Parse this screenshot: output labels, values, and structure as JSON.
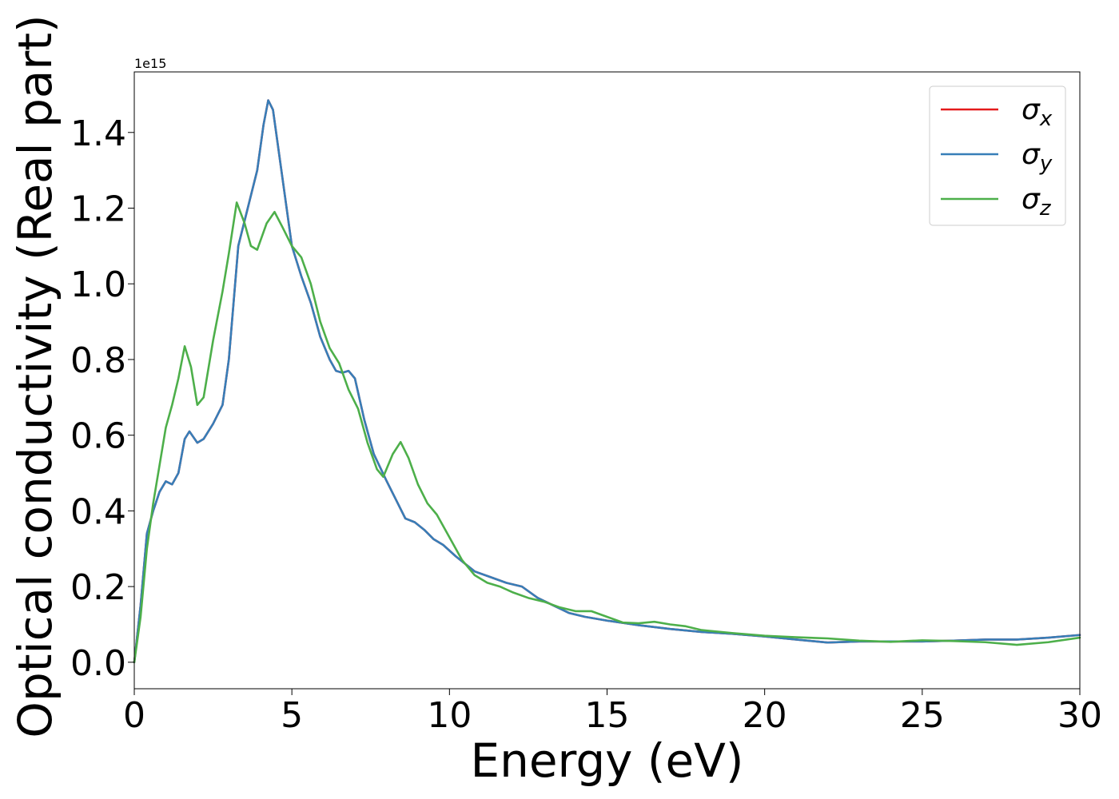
{
  "chart_data": {
    "type": "line",
    "xlabel": "Energy (eV)",
    "ylabel": "Optical conductivity (Real part)",
    "offset_text": "1e15",
    "xlim": [
      0,
      30
    ],
    "ylim": [
      -0.07,
      1.56
    ],
    "x_ticks": [
      0,
      5,
      10,
      15,
      20,
      25,
      30
    ],
    "x_tick_labels": [
      "0",
      "5",
      "10",
      "15",
      "20",
      "25",
      "30"
    ],
    "y_ticks": [
      0.0,
      0.2,
      0.4,
      0.6,
      0.8,
      1.0,
      1.2,
      1.4
    ],
    "y_tick_labels": [
      "0.0",
      "0.2",
      "0.4",
      "0.6",
      "0.8",
      "1.0",
      "1.2",
      "1.4"
    ],
    "grid": false,
    "legend_position": "top-right",
    "series": [
      {
        "name": "σx",
        "name_base": "σ",
        "name_sub": "x",
        "color": "#e41a1c",
        "points": [
          [
            0,
            0
          ],
          [
            0.2,
            0.15
          ],
          [
            0.4,
            0.34
          ],
          [
            0.6,
            0.4
          ],
          [
            0.8,
            0.45
          ],
          [
            1.0,
            0.478
          ],
          [
            1.2,
            0.47
          ],
          [
            1.4,
            0.5
          ],
          [
            1.6,
            0.59
          ],
          [
            1.75,
            0.61
          ],
          [
            2.0,
            0.58
          ],
          [
            2.2,
            0.59
          ],
          [
            2.5,
            0.63
          ],
          [
            2.8,
            0.68
          ],
          [
            3.0,
            0.8
          ],
          [
            3.3,
            1.1
          ],
          [
            3.6,
            1.2
          ],
          [
            3.9,
            1.3
          ],
          [
            4.1,
            1.42
          ],
          [
            4.25,
            1.485
          ],
          [
            4.4,
            1.46
          ],
          [
            4.7,
            1.28
          ],
          [
            5.0,
            1.1
          ],
          [
            5.3,
            1.02
          ],
          [
            5.6,
            0.95
          ],
          [
            5.9,
            0.86
          ],
          [
            6.2,
            0.8
          ],
          [
            6.4,
            0.77
          ],
          [
            6.6,
            0.765
          ],
          [
            6.8,
            0.77
          ],
          [
            7.0,
            0.75
          ],
          [
            7.3,
            0.64
          ],
          [
            7.6,
            0.55
          ],
          [
            8.0,
            0.48
          ],
          [
            8.3,
            0.43
          ],
          [
            8.6,
            0.38
          ],
          [
            8.9,
            0.37
          ],
          [
            9.2,
            0.35
          ],
          [
            9.5,
            0.325
          ],
          [
            9.8,
            0.31
          ],
          [
            10.2,
            0.28
          ],
          [
            10.8,
            0.24
          ],
          [
            11.3,
            0.225
          ],
          [
            11.8,
            0.21
          ],
          [
            12.3,
            0.2
          ],
          [
            12.8,
            0.17
          ],
          [
            13.3,
            0.15
          ],
          [
            13.8,
            0.13
          ],
          [
            14.3,
            0.12
          ],
          [
            15.0,
            0.11
          ],
          [
            16.0,
            0.098
          ],
          [
            17.0,
            0.088
          ],
          [
            18.0,
            0.08
          ],
          [
            19.0,
            0.075
          ],
          [
            20.0,
            0.068
          ],
          [
            21.0,
            0.06
          ],
          [
            22.0,
            0.052
          ],
          [
            23.0,
            0.055
          ],
          [
            24.0,
            0.055
          ],
          [
            25.0,
            0.055
          ],
          [
            26.0,
            0.057
          ],
          [
            27.0,
            0.06
          ],
          [
            28.0,
            0.06
          ],
          [
            29.0,
            0.065
          ],
          [
            30.0,
            0.072
          ]
        ]
      },
      {
        "name": "σy",
        "name_base": "σ",
        "name_sub": "y",
        "color": "#377eb8",
        "points": [
          [
            0,
            0
          ],
          [
            0.2,
            0.15
          ],
          [
            0.4,
            0.34
          ],
          [
            0.6,
            0.4
          ],
          [
            0.8,
            0.45
          ],
          [
            1.0,
            0.478
          ],
          [
            1.2,
            0.47
          ],
          [
            1.4,
            0.5
          ],
          [
            1.6,
            0.59
          ],
          [
            1.75,
            0.61
          ],
          [
            2.0,
            0.58
          ],
          [
            2.2,
            0.59
          ],
          [
            2.5,
            0.63
          ],
          [
            2.8,
            0.68
          ],
          [
            3.0,
            0.8
          ],
          [
            3.3,
            1.1
          ],
          [
            3.6,
            1.2
          ],
          [
            3.9,
            1.3
          ],
          [
            4.1,
            1.42
          ],
          [
            4.25,
            1.485
          ],
          [
            4.4,
            1.46
          ],
          [
            4.7,
            1.28
          ],
          [
            5.0,
            1.1
          ],
          [
            5.3,
            1.02
          ],
          [
            5.6,
            0.95
          ],
          [
            5.9,
            0.86
          ],
          [
            6.2,
            0.8
          ],
          [
            6.4,
            0.77
          ],
          [
            6.6,
            0.765
          ],
          [
            6.8,
            0.77
          ],
          [
            7.0,
            0.75
          ],
          [
            7.3,
            0.64
          ],
          [
            7.6,
            0.55
          ],
          [
            8.0,
            0.48
          ],
          [
            8.3,
            0.43
          ],
          [
            8.6,
            0.38
          ],
          [
            8.9,
            0.37
          ],
          [
            9.2,
            0.35
          ],
          [
            9.5,
            0.325
          ],
          [
            9.8,
            0.31
          ],
          [
            10.2,
            0.28
          ],
          [
            10.8,
            0.24
          ],
          [
            11.3,
            0.225
          ],
          [
            11.8,
            0.21
          ],
          [
            12.3,
            0.2
          ],
          [
            12.8,
            0.17
          ],
          [
            13.3,
            0.15
          ],
          [
            13.8,
            0.13
          ],
          [
            14.3,
            0.12
          ],
          [
            15.0,
            0.11
          ],
          [
            16.0,
            0.098
          ],
          [
            17.0,
            0.088
          ],
          [
            18.0,
            0.08
          ],
          [
            19.0,
            0.075
          ],
          [
            20.0,
            0.068
          ],
          [
            21.0,
            0.06
          ],
          [
            22.0,
            0.052
          ],
          [
            23.0,
            0.055
          ],
          [
            24.0,
            0.055
          ],
          [
            25.0,
            0.055
          ],
          [
            26.0,
            0.057
          ],
          [
            27.0,
            0.06
          ],
          [
            28.0,
            0.06
          ],
          [
            29.0,
            0.065
          ],
          [
            30.0,
            0.072
          ]
        ]
      },
      {
        "name": "σz",
        "name_base": "σ",
        "name_sub": "z",
        "color": "#4daf4a",
        "points": [
          [
            0,
            0
          ],
          [
            0.2,
            0.12
          ],
          [
            0.4,
            0.3
          ],
          [
            0.6,
            0.42
          ],
          [
            0.8,
            0.52
          ],
          [
            1.0,
            0.62
          ],
          [
            1.2,
            0.68
          ],
          [
            1.4,
            0.75
          ],
          [
            1.6,
            0.835
          ],
          [
            1.8,
            0.78
          ],
          [
            2.0,
            0.68
          ],
          [
            2.2,
            0.7
          ],
          [
            2.5,
            0.85
          ],
          [
            2.8,
            0.98
          ],
          [
            3.0,
            1.08
          ],
          [
            3.25,
            1.215
          ],
          [
            3.5,
            1.16
          ],
          [
            3.7,
            1.1
          ],
          [
            3.9,
            1.09
          ],
          [
            4.2,
            1.16
          ],
          [
            4.45,
            1.19
          ],
          [
            4.7,
            1.15
          ],
          [
            5.0,
            1.1
          ],
          [
            5.3,
            1.07
          ],
          [
            5.6,
            1.0
          ],
          [
            5.9,
            0.9
          ],
          [
            6.2,
            0.83
          ],
          [
            6.5,
            0.79
          ],
          [
            6.8,
            0.72
          ],
          [
            7.1,
            0.67
          ],
          [
            7.4,
            0.58
          ],
          [
            7.7,
            0.51
          ],
          [
            7.9,
            0.49
          ],
          [
            8.2,
            0.55
          ],
          [
            8.45,
            0.582
          ],
          [
            8.7,
            0.54
          ],
          [
            9.0,
            0.47
          ],
          [
            9.3,
            0.42
          ],
          [
            9.6,
            0.39
          ],
          [
            10.0,
            0.33
          ],
          [
            10.4,
            0.27
          ],
          [
            10.8,
            0.23
          ],
          [
            11.2,
            0.21
          ],
          [
            11.6,
            0.2
          ],
          [
            12.0,
            0.185
          ],
          [
            12.5,
            0.17
          ],
          [
            13.0,
            0.16
          ],
          [
            13.5,
            0.145
          ],
          [
            14.0,
            0.135
          ],
          [
            14.5,
            0.135
          ],
          [
            15.0,
            0.12
          ],
          [
            15.5,
            0.105
          ],
          [
            16.0,
            0.103
          ],
          [
            16.5,
            0.107
          ],
          [
            17.0,
            0.1
          ],
          [
            17.5,
            0.095
          ],
          [
            18.0,
            0.085
          ],
          [
            19.0,
            0.077
          ],
          [
            20.0,
            0.07
          ],
          [
            21.0,
            0.066
          ],
          [
            22.0,
            0.063
          ],
          [
            23.0,
            0.057
          ],
          [
            24.0,
            0.054
          ],
          [
            25.0,
            0.058
          ],
          [
            26.0,
            0.056
          ],
          [
            27.0,
            0.053
          ],
          [
            28.0,
            0.046
          ],
          [
            29.0,
            0.053
          ],
          [
            30.0,
            0.065
          ]
        ]
      }
    ]
  }
}
